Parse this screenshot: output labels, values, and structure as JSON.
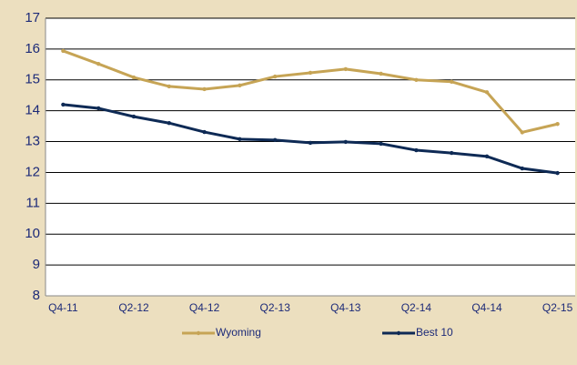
{
  "chart_data": {
    "type": "line",
    "categories": [
      "Q4-11",
      null,
      "Q2-12",
      null,
      "Q4-12",
      null,
      "Q2-13",
      null,
      "Q4-13",
      null,
      "Q2-14",
      null,
      "Q4-14",
      null,
      "Q2-15"
    ],
    "series": [
      {
        "name": "Wyoming",
        "color": "#c6a455",
        "values": [
          15.94,
          15.52,
          15.08,
          14.79,
          14.7,
          14.82,
          15.11,
          15.23,
          15.35,
          15.2,
          15.0,
          14.94,
          14.6,
          13.3,
          13.57
        ]
      },
      {
        "name": "Best 10",
        "color": "#0e2a55",
        "values": [
          14.2,
          14.08,
          13.81,
          13.6,
          13.31,
          13.08,
          13.05,
          12.96,
          12.99,
          12.93,
          12.72,
          12.63,
          12.52,
          12.13,
          11.98
        ]
      }
    ],
    "ylim": [
      8,
      17
    ],
    "yticks": [
      8,
      9,
      10,
      11,
      12,
      13,
      14,
      15,
      16,
      17
    ],
    "grid": true,
    "legend": "bottom"
  }
}
